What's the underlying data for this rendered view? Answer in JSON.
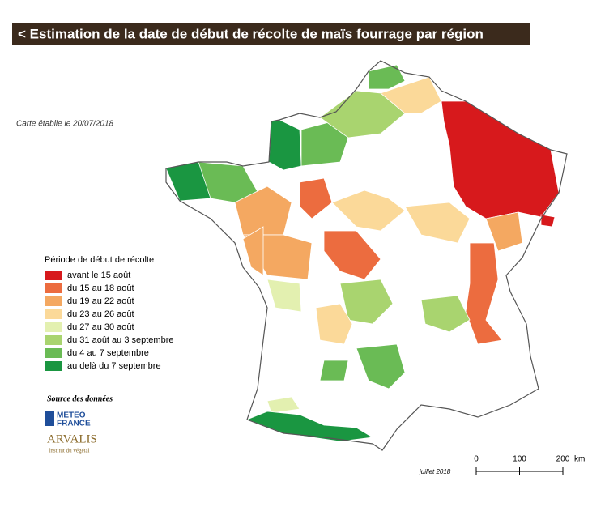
{
  "title": "< Estimation de la date de début de récolte de maïs fourrage par région",
  "date_note": "Carte établie le 20/07/2018",
  "legend": {
    "title": "Période de début de récolte",
    "items": [
      {
        "label": "avant le 15 août",
        "color": "#d7191c"
      },
      {
        "label": "du 15 au 18 août",
        "color": "#ec6c3f"
      },
      {
        "label": "du 19 au 22 août",
        "color": "#f4a861"
      },
      {
        "label": "du 23 au 26 août",
        "color": "#fbd999"
      },
      {
        "label": "du 27 au 30 août",
        "color": "#e3f0b0"
      },
      {
        "label": "du 31 août au 3 septembre",
        "color": "#a9d46f"
      },
      {
        "label": "du 4 au 7 septembre",
        "color": "#6abb55"
      },
      {
        "label": "au delà du 7 septembre",
        "color": "#1a9641"
      }
    ]
  },
  "source": {
    "title": "Source des données",
    "logo1_line1": "METEO",
    "logo1_line2": "FRANCE",
    "logo2": "ARVALIS",
    "logo2_sub": "Institut du végétal"
  },
  "map_date": "juillet 2018",
  "scale": {
    "ticks": [
      0,
      100,
      200
    ],
    "unit": "km"
  }
}
